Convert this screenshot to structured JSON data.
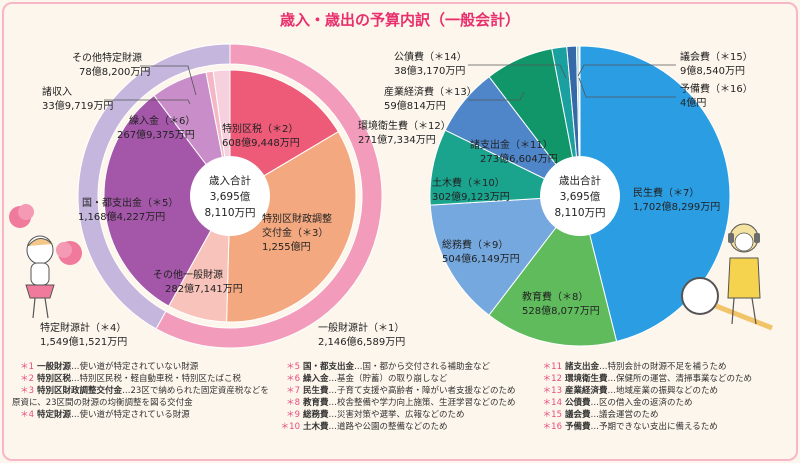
{
  "title": "歳入・歳出の予算内訳（一般会計）",
  "colors": {
    "title": "#e8306e",
    "accent": "#e84c7d",
    "frame": "#f8b6c9",
    "bg": "#fdf6ec"
  },
  "revenue": {
    "center": [
      "歳入合計",
      "3,695億",
      "8,110万円"
    ],
    "annotations": [
      {
        "name": "その他特定財源",
        "value": "78億8,200万円"
      },
      {
        "name": "諸収入",
        "value": "33億9,719万円"
      },
      {
        "name": "特定財源計（＊4）",
        "value": "1,549億1,521万円"
      },
      {
        "name": "一般財源計（＊1）",
        "value": "2,146億6,589万円"
      }
    ]
  },
  "expenditure": {
    "center": [
      "歳出合計",
      "3,695億",
      "8,110万円"
    ],
    "annotations": [
      {
        "name": "公債費（＊14）",
        "value": "38億3,170万円"
      },
      {
        "name": "議会費（＊15）",
        "value": "9億8,540万円"
      },
      {
        "name": "予備費（＊16）",
        "value": "4億円"
      },
      {
        "name": "産業経済費（＊13）",
        "value": "59億814万円"
      },
      {
        "name": "環境衛生費（＊12）",
        "value": "271億7,334万円"
      }
    ]
  },
  "chart_data": [
    {
      "type": "pie",
      "title": "歳入合計 3,695億8,110万円",
      "outer_ring": [
        {
          "label": "一般財源計",
          "value_oku": 2146.6589
        },
        {
          "label": "特定財源計",
          "value_oku": 1549.1521
        }
      ],
      "slices": [
        {
          "label": "特別区税（＊2）",
          "amount": "608億9,448万円",
          "value_oku": 608.9448,
          "color": "#ee5b79"
        },
        {
          "label": "特別区財政調整交付金（＊3）",
          "amount": "1,255億円",
          "value_oku": 1255.0,
          "color": "#f3a87f"
        },
        {
          "label": "その他一般財源",
          "amount": "282億7,141万円",
          "value_oku": 282.7141,
          "color": "#f7c3ba"
        },
        {
          "label": "国・都支出金（＊5）",
          "amount": "1,168億4,227万円",
          "value_oku": 1168.4227,
          "color": "#a457a9"
        },
        {
          "label": "繰入金（＊6）",
          "amount": "267億9,375万円",
          "value_oku": 267.9375,
          "color": "#c98dc9"
        },
        {
          "label": "諸収入",
          "amount": "33億9,719万円",
          "value_oku": 33.9719,
          "color": "#f3b7c6"
        },
        {
          "label": "その他特定財源",
          "amount": "78億8,200万円",
          "value_oku": 78.82,
          "color": "#f6d0dc"
        }
      ]
    },
    {
      "type": "pie",
      "title": "歳出合計 3,695億8,110万円",
      "slices": [
        {
          "label": "民生費（＊7）",
          "amount": "1,702億8,299万円",
          "value_oku": 1702.8299,
          "color": "#2b9de2"
        },
        {
          "label": "教育費（＊8）",
          "amount": "528億8,077万円",
          "value_oku": 528.8077,
          "color": "#5fbb5c"
        },
        {
          "label": "総務費（＊9）",
          "amount": "504億6,149万円",
          "value_oku": 504.6149,
          "color": "#75a8de"
        },
        {
          "label": "土木費（＊10）",
          "amount": "302億9,123万円",
          "value_oku": 302.9123,
          "color": "#1aa38d"
        },
        {
          "label": "諸支出金（＊11）",
          "amount": "273億6,604万円",
          "value_oku": 273.6604,
          "color": "#4e86c9"
        },
        {
          "label": "環境衛生費（＊12）",
          "amount": "271億7,334万円",
          "value_oku": 271.7334,
          "color": "#11966a"
        },
        {
          "label": "産業経済費（＊13）",
          "amount": "59億814万円",
          "value_oku": 59.0814,
          "color": "#1aa0a0"
        },
        {
          "label": "公債費（＊14）",
          "amount": "38億3,170万円",
          "value_oku": 38.317,
          "color": "#3569a8"
        },
        {
          "label": "議会費（＊15）",
          "amount": "9億8,540万円",
          "value_oku": 9.854,
          "color": "#8fd0cd"
        },
        {
          "label": "予備費（＊16）",
          "amount": "4億円",
          "value_oku": 4.0,
          "color": "#c8e6e4"
        }
      ]
    }
  ],
  "notes": [
    {
      "mark": "＊1",
      "term": "一般財源",
      "desc": "…使い道が特定されていない財源"
    },
    {
      "mark": "＊2",
      "term": "特別区税",
      "desc": "…特別区民税・軽自動車税・特別区たばこ税"
    },
    {
      "mark": "＊3",
      "term": "特別区財政調整交付金",
      "desc": "…23区で納められた固定資産税などを原資に、23区間の財源の均衡調整を図る交付金"
    },
    {
      "mark": "＊4",
      "term": "特定財源",
      "desc": "…使い道が特定されている財源"
    },
    {
      "mark": "＊5",
      "term": "国・都支出金",
      "desc": "…国・都から交付される補助金など"
    },
    {
      "mark": "＊6",
      "term": "繰入金",
      "desc": "…基金（貯蓄）の取り崩しなど"
    },
    {
      "mark": "＊7",
      "term": "民生費",
      "desc": "…子育て支援や高齢者・障がい者支援などのため"
    },
    {
      "mark": "＊8",
      "term": "教育費",
      "desc": "…校舎整備や学力向上施策、生涯学習などのため"
    },
    {
      "mark": "＊9",
      "term": "総務費",
      "desc": "…災害対策や選挙、広報などのため"
    },
    {
      "mark": "＊10",
      "term": "土木費",
      "desc": "…道路や公園の整備などのため"
    },
    {
      "mark": "＊11",
      "term": "諸支出金",
      "desc": "…特別会計の財源不足を補うため"
    },
    {
      "mark": "＊12",
      "term": "環境衛生費",
      "desc": "…保健所の運営、清掃事業などのため"
    },
    {
      "mark": "＊13",
      "term": "産業経済費",
      "desc": "…地域産業の振興などのため"
    },
    {
      "mark": "＊14",
      "term": "公債費",
      "desc": "…区の借入金の返済のため"
    },
    {
      "mark": "＊15",
      "term": "議会費",
      "desc": "…議会運営のため"
    },
    {
      "mark": "＊16",
      "term": "予備費",
      "desc": "…予期できない支出に備えるため"
    }
  ]
}
